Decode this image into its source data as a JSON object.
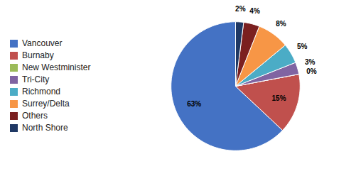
{
  "chart_data": {
    "type": "pie",
    "categories": [
      "Vancouver",
      "Burnaby",
      "New Westminister",
      "Tri-City",
      "Richmond",
      "Surrey/Delta",
      "Others",
      "North Shore"
    ],
    "values": [
      63,
      15,
      0,
      3,
      5,
      8,
      4,
      2
    ],
    "value_labels": [
      "63%",
      "15%",
      "0%",
      "3%",
      "5%",
      "8%",
      "4%",
      "2%"
    ],
    "colors": [
      "#4472C4",
      "#C0504D",
      "#9BBB59",
      "#8064A2",
      "#4BACC6",
      "#F79646",
      "#7B2020",
      "#1F3864"
    ],
    "data_labels": true,
    "legend": "left"
  }
}
